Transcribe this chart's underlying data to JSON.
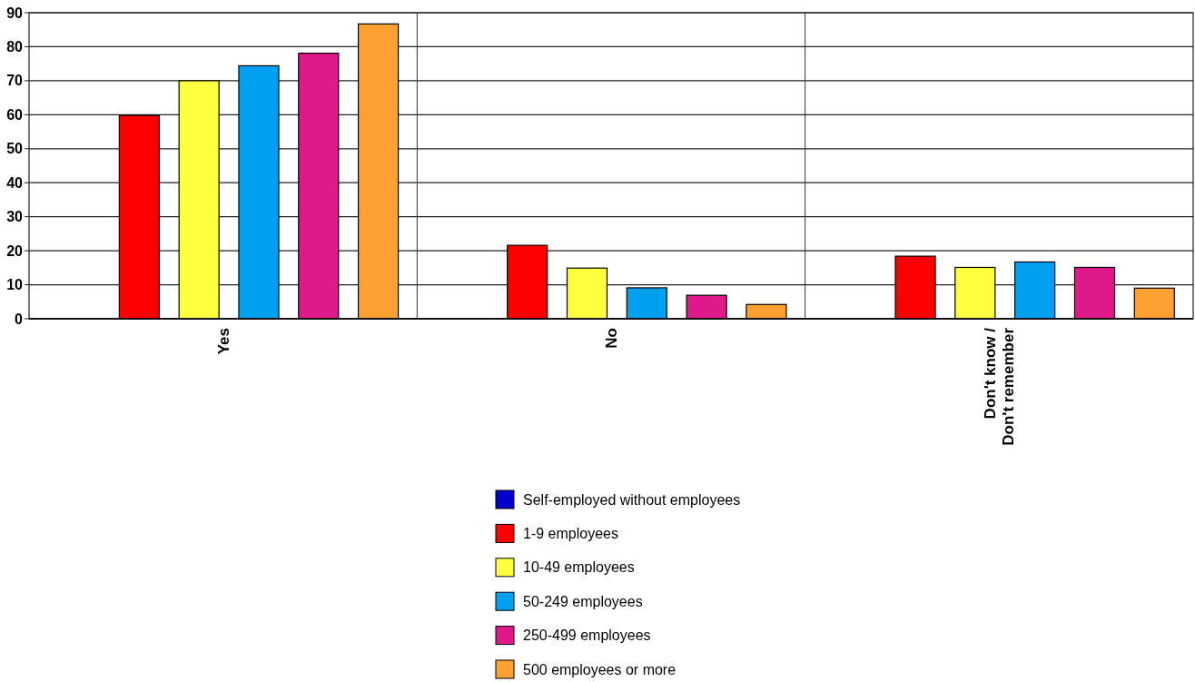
{
  "chart_data": {
    "type": "bar",
    "categories": [
      "Yes",
      "No",
      "Don't know / Don't remember"
    ],
    "series": [
      {
        "name": "Self-employed without employees",
        "color": "#0000cc",
        "values": [
          null,
          null,
          null
        ]
      },
      {
        "name": "1-9 employees",
        "color": "#ff0000",
        "values": [
          59.8,
          21.6,
          18.4
        ]
      },
      {
        "name": "10-49 employees",
        "color": "#ffff40",
        "values": [
          70,
          14.9,
          15.1
        ]
      },
      {
        "name": "50-249 employees",
        "color": "#00a0f0",
        "values": [
          74.4,
          9.1,
          16.7
        ]
      },
      {
        "name": "250-499 employees",
        "color": "#e0198a",
        "values": [
          78.1,
          6.9,
          15.1
        ]
      },
      {
        "name": "500 employees or more",
        "color": "#ffa033",
        "values": [
          86.7,
          4.2,
          9.0
        ]
      }
    ],
    "ylim": [
      0,
      90
    ],
    "yticks": [
      0,
      10,
      20,
      30,
      40,
      50,
      60,
      70,
      80,
      90
    ],
    "grid": true,
    "legend": "bottom"
  }
}
